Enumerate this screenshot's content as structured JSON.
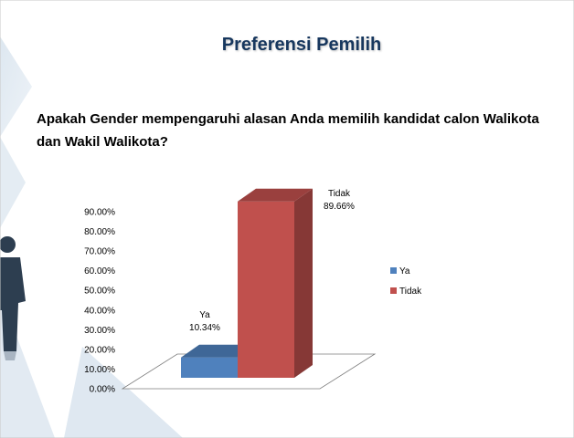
{
  "slide": {
    "title": "Preferensi Pemilih",
    "question": "Apakah Gender mempengaruhi alasan Anda memilih kandidat calon Walikota  dan Wakil Walikota?"
  },
  "colors": {
    "title": "#17375e",
    "ya": "#4f81bd",
    "tidak": "#c0504d",
    "decor": "#dce6ef"
  },
  "chart_data": {
    "type": "bar",
    "title": "",
    "xlabel": "",
    "ylabel": "",
    "categories": [
      "Ya",
      "Tidak"
    ],
    "values": [
      10.34,
      89.66
    ],
    "data_labels": [
      {
        "name": "Ya",
        "value": "10.34%"
      },
      {
        "name": "Tidak",
        "value": "89.66%"
      }
    ],
    "y_ticks": [
      "0.00%",
      "10.00%",
      "20.00%",
      "30.00%",
      "40.00%",
      "50.00%",
      "60.00%",
      "70.00%",
      "80.00%",
      "90.00%"
    ],
    "ylim": [
      0,
      90
    ],
    "grid": false,
    "legend": {
      "placement": "right",
      "items": [
        {
          "label": "Ya",
          "color": "#4f81bd"
        },
        {
          "label": "Tidak",
          "color": "#c0504d"
        }
      ]
    }
  }
}
